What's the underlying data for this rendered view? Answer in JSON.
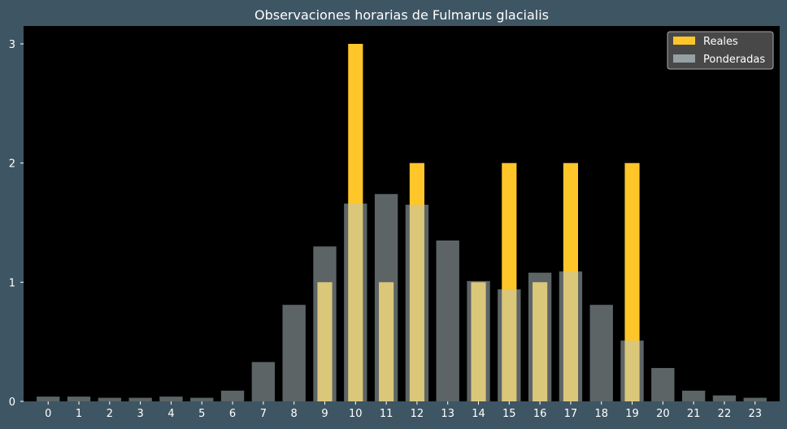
{
  "chart_data": {
    "type": "bar",
    "title": "Observaciones horarias de Fulmarus glacialis",
    "xlabel": "",
    "ylabel": "",
    "categories": [
      "0",
      "1",
      "2",
      "3",
      "4",
      "5",
      "6",
      "7",
      "8",
      "9",
      "10",
      "11",
      "12",
      "13",
      "14",
      "15",
      "16",
      "17",
      "18",
      "19",
      "20",
      "21",
      "22",
      "23"
    ],
    "ylim": [
      0,
      3.15
    ],
    "yticks": [
      0,
      1,
      2,
      3
    ],
    "grid": false,
    "legend_position": "top-right",
    "series": [
      {
        "name": "Reales",
        "color": "#ffc629",
        "values": [
          0,
          0,
          0,
          0,
          0,
          0,
          0,
          0,
          0,
          1,
          3,
          1,
          2,
          0,
          1,
          2,
          1,
          2,
          0,
          2,
          0,
          0,
          0,
          0
        ]
      },
      {
        "name": "Ponderadas",
        "color": "#b7c7cc",
        "opacity": 0.5,
        "values": [
          0.04,
          0.04,
          0.03,
          0.03,
          0.04,
          0.03,
          0.09,
          0.33,
          0.81,
          1.3,
          1.66,
          1.74,
          1.65,
          1.35,
          1.01,
          0.94,
          1.08,
          1.09,
          0.81,
          0.51,
          0.28,
          0.09,
          0.05,
          0.03
        ]
      }
    ],
    "colors": {
      "background": "#3e5563",
      "plot_background": "#000000",
      "text": "#ffffff",
      "legend_background": "#555555",
      "legend_border": "#aaaaaa"
    }
  }
}
